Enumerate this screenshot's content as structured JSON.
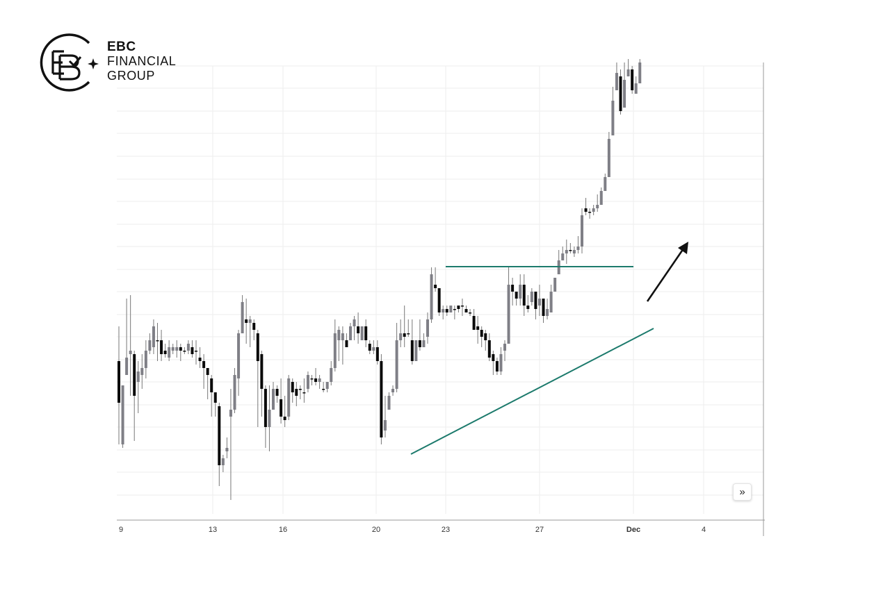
{
  "brand": {
    "line1": "EBC",
    "line2": "FINANCIAL",
    "line3": "GROUP"
  },
  "controls": {
    "scroll_icon": "»"
  },
  "colors": {
    "up_candle": "#7f7f86",
    "down_candle": "#0a0a0a",
    "wick": "#777777",
    "trendline": "#1c7a6c",
    "arrow": "#111111",
    "grid": "#eeeeee",
    "axis": "#999999"
  },
  "chart_data": {
    "type": "candlestick",
    "title": "",
    "xlabel": "",
    "ylabel": "",
    "x_tick_labels": [
      "9",
      "13",
      "16",
      "20",
      "23",
      "27",
      "Dec",
      "4"
    ],
    "grid": true,
    "legend": "none",
    "y_axis_labels": "not visible",
    "annotations": [
      {
        "type": "horizontal-resistance-line",
        "color": "#1c7a6c"
      },
      {
        "type": "rising-support-trendline",
        "color": "#1c7a6c"
      },
      {
        "type": "breakout-arrow",
        "direction": "up-right",
        "color": "#111111"
      }
    ],
    "pattern": "ascending triangle breakout",
    "series": [
      {
        "ohlc": [
          [
            520,
            580,
            640,
            470
          ],
          [
            640,
            555,
            645,
            640
          ],
          [
            540,
            515,
            540,
            430
          ],
          [
            510,
            505,
            570,
            425
          ],
          [
            510,
            570,
            635,
            505
          ],
          [
            550,
            535,
            595,
            520
          ],
          [
            540,
            530,
            560,
            510
          ],
          [
            530,
            505,
            545,
            490
          ],
          [
            505,
            490,
            510,
            480
          ],
          [
            500,
            470,
            510,
            460
          ],
          [
            490,
            490,
            520,
            465
          ],
          [
            490,
            510,
            520,
            475
          ],
          [
            505,
            510,
            515,
            495
          ],
          [
            515,
            500,
            520,
            490
          ],
          [
            505,
            500,
            510,
            495
          ],
          [
            505,
            500,
            515,
            490
          ],
          [
            500,
            505,
            520,
            495
          ],
          [
            505,
            505,
            510,
            500
          ],
          [
            505,
            495,
            510,
            490
          ],
          [
            500,
            510,
            515,
            490
          ],
          [
            505,
            505,
            525,
            490
          ],
          [
            515,
            520,
            530,
            500
          ],
          [
            520,
            530,
            560,
            510
          ],
          [
            530,
            540,
            575,
            535
          ],
          [
            545,
            565,
            600,
            540
          ],
          [
            565,
            580,
            600,
            575
          ],
          [
            585,
            670,
            700,
            580
          ],
          [
            670,
            660,
            680,
            655
          ],
          [
            650,
            645,
            660,
            630
          ],
          [
            600,
            590,
            720,
            560
          ],
          [
            590,
            540,
            595,
            530
          ],
          [
            545,
            480,
            570,
            475
          ],
          [
            480,
            435,
            440,
            425
          ],
          [
            460,
            465,
            495,
            430
          ],
          [
            465,
            460,
            500,
            455
          ],
          [
            465,
            475,
            490,
            460
          ],
          [
            480,
            520,
            615,
            475
          ],
          [
            510,
            560,
            600,
            505
          ],
          [
            560,
            615,
            645,
            555
          ],
          [
            615,
            590,
            650,
            555
          ],
          [
            590,
            560,
            590,
            550
          ],
          [
            560,
            570,
            580,
            555
          ],
          [
            575,
            600,
            610,
            545
          ],
          [
            600,
            605,
            615,
            570
          ],
          [
            600,
            545,
            605,
            540
          ],
          [
            550,
            565,
            580,
            545
          ],
          [
            560,
            570,
            585,
            550
          ],
          [
            560,
            560,
            575,
            555
          ],
          [
            565,
            565,
            580,
            545
          ],
          [
            560,
            540,
            565,
            535
          ],
          [
            545,
            545,
            555,
            540
          ],
          [
            545,
            550,
            555,
            530
          ],
          [
            550,
            545,
            560,
            540
          ],
          [
            560,
            560,
            565,
            550
          ],
          [
            560,
            550,
            565,
            550
          ],
          [
            550,
            530,
            555,
            520
          ],
          [
            530,
            480,
            535,
            460
          ],
          [
            490,
            475,
            520,
            470
          ],
          [
            490,
            480,
            525,
            470
          ],
          [
            490,
            500,
            500,
            480
          ],
          [
            490,
            470,
            475,
            465
          ],
          [
            470,
            460,
            490,
            455
          ],
          [
            470,
            480,
            495,
            450
          ],
          [
            490,
            470,
            480,
            470
          ],
          [
            470,
            490,
            500,
            460
          ],
          [
            495,
            505,
            510,
            490
          ],
          [
            505,
            500,
            510,
            490
          ],
          [
            500,
            520,
            525,
            490
          ],
          [
            520,
            630,
            640,
            510
          ],
          [
            620,
            605,
            630,
            570
          ],
          [
            590,
            570,
            575,
            565
          ],
          [
            565,
            560,
            570,
            555
          ],
          [
            560,
            490,
            565,
            465
          ],
          [
            490,
            480,
            500,
            460
          ],
          [
            480,
            485,
            500,
            440
          ],
          [
            480,
            480,
            485,
            460
          ],
          [
            490,
            520,
            525,
            460
          ],
          [
            520,
            490,
            520,
            490
          ],
          [
            490,
            500,
            505,
            460
          ],
          [
            500,
            490,
            495,
            480
          ],
          [
            485,
            460,
            495,
            450
          ],
          [
            460,
            395,
            465,
            385
          ],
          [
            410,
            415,
            420,
            385
          ],
          [
            415,
            450,
            455,
            435
          ],
          [
            450,
            445,
            460,
            440
          ],
          [
            445,
            450,
            455,
            440
          ],
          [
            450,
            440,
            440,
            440
          ],
          [
            445,
            445,
            460,
            440
          ],
          [
            440,
            445,
            450,
            440
          ],
          [
            440,
            440,
            455,
            430
          ],
          [
            445,
            450,
            450,
            440
          ],
          [
            450,
            450,
            455,
            445
          ],
          [
            455,
            475,
            475,
            445
          ],
          [
            470,
            475,
            495,
            455
          ],
          [
            475,
            485,
            500,
            470
          ],
          [
            480,
            490,
            505,
            475
          ],
          [
            490,
            515,
            520,
            480
          ],
          [
            510,
            520,
            540,
            505
          ],
          [
            520,
            535,
            540,
            515
          ],
          [
            535,
            510,
            540,
            500
          ],
          [
            505,
            495,
            520,
            490
          ],
          [
            495,
            410,
            470,
            385
          ],
          [
            410,
            420,
            440,
            400
          ],
          [
            420,
            430,
            440,
            420
          ],
          [
            430,
            410,
            440,
            395
          ],
          [
            410,
            440,
            455,
            395
          ],
          [
            440,
            445,
            450,
            425
          ],
          [
            435,
            420,
            440,
            415
          ],
          [
            420,
            445,
            460,
            420
          ],
          [
            440,
            430,
            455,
            410
          ],
          [
            430,
            455,
            465,
            430
          ],
          [
            455,
            445,
            460,
            430
          ],
          [
            450,
            420,
            425,
            410
          ],
          [
            420,
            400,
            405,
            400
          ],
          [
            395,
            375,
            390,
            360
          ],
          [
            375,
            365,
            370,
            355
          ],
          [
            365,
            360,
            380,
            345
          ],
          [
            360,
            360,
            365,
            350
          ],
          [
            365,
            360,
            370,
            355
          ],
          [
            360,
            355,
            365,
            340
          ],
          [
            355,
            310,
            365,
            300
          ],
          [
            300,
            305,
            310,
            285
          ],
          [
            305,
            305,
            315,
            300
          ],
          [
            305,
            300,
            310,
            295
          ],
          [
            300,
            295,
            305,
            280
          ],
          [
            295,
            275,
            290,
            270
          ],
          [
            275,
            255,
            260,
            250
          ],
          [
            255,
            200,
            210,
            190
          ],
          [
            195,
            145,
            160,
            125
          ],
          [
            130,
            105,
            120,
            90
          ],
          [
            110,
            160,
            165,
            100
          ],
          [
            155,
            115,
            130,
            90
          ],
          [
            110,
            100,
            110,
            85
          ],
          [
            100,
            130,
            135,
            95
          ],
          [
            135,
            120,
            125,
            110
          ],
          [
            120,
            90,
            95,
            85
          ]
        ]
      }
    ]
  }
}
